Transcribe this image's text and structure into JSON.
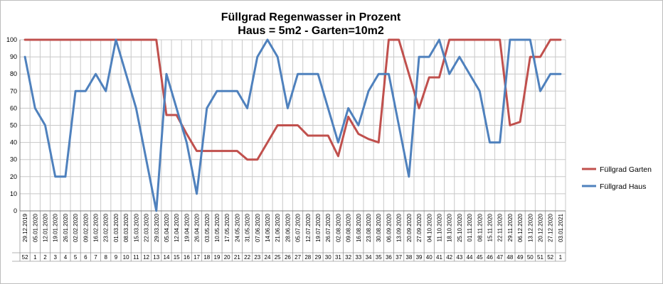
{
  "chart_data": {
    "type": "line",
    "title": [
      "Füllgrad Regenwasser in Prozent",
      "Haus = 5m2 - Garten=10m2"
    ],
    "ylim": [
      0,
      100
    ],
    "yticks": [
      "0",
      "10",
      "20",
      "30",
      "40",
      "50",
      "60",
      "70",
      "80",
      "90",
      "100"
    ],
    "grid": true,
    "legend": "right",
    "categories": [
      "29.12.2019",
      "05.01.2020",
      "12.01.2020",
      "19.01.2020",
      "26.01.2020",
      "02.02.2020",
      "09.02.2020",
      "16.02.2020",
      "23.02.2020",
      "01.03.2020",
      "08.03.2020",
      "15.03.2020",
      "22.03.2020",
      "29.03.2020",
      "05.04.2020",
      "12.04.2020",
      "19.04.2020",
      "26.04.2020",
      "03.05.2020",
      "10.05.2020",
      "17.05.2020",
      "24.05.2020",
      "31.05.2020",
      "07.06.2020",
      "14.06.2020",
      "21.06.2020",
      "28.06.2020",
      "05.07.2020",
      "12.07.2020",
      "19.07.2020",
      "26.07.2020",
      "02.08.2020",
      "09.08.2020",
      "16.08.2020",
      "23.08.2020",
      "30.08.2020",
      "06.09.2020",
      "13.09.2020",
      "20.09.2020",
      "27.09.2020",
      "04.10.2020",
      "11.10.2020",
      "18.10.2020",
      "25.10.2020",
      "01.11.2020",
      "08.11.2020",
      "15.11.2020",
      "22.11.2020",
      "29.11.2020",
      "06.12.2020",
      "13.12.2020",
      "20.12.2020",
      "27.12.2020",
      "03.01.2021"
    ],
    "weeks": [
      "52",
      "1",
      "2",
      "3",
      "4",
      "5",
      "6",
      "7",
      "8",
      "9",
      "10",
      "11",
      "12",
      "13",
      "14",
      "15",
      "16",
      "17",
      "18",
      "19",
      "20",
      "21",
      "22",
      "23",
      "24",
      "25",
      "26",
      "27",
      "28",
      "29",
      "30",
      "31",
      "32",
      "33",
      "34",
      "35",
      "36",
      "37",
      "38",
      "39",
      "40",
      "41",
      "42",
      "43",
      "44",
      "45",
      "46",
      "47",
      "48",
      "49",
      "50",
      "51",
      "52",
      "1"
    ],
    "series": [
      {
        "name": "Füllgrad Garten",
        "color": "#c0504d",
        "values": [
          100,
          100,
          100,
          100,
          100,
          100,
          100,
          100,
          100,
          100,
          100,
          100,
          100,
          100,
          56,
          56,
          45,
          35,
          35,
          35,
          35,
          35,
          30,
          30,
          40,
          50,
          50,
          50,
          44,
          44,
          44,
          32,
          55,
          45,
          42,
          40,
          100,
          100,
          80,
          60,
          78,
          78,
          100,
          100,
          100,
          100,
          100,
          100,
          50,
          52,
          90,
          90,
          100,
          100
        ]
      },
      {
        "name": "Füllgrad Haus",
        "color": "#4f81bd",
        "values": [
          90,
          60,
          50,
          20,
          20,
          70,
          70,
          80,
          70,
          100,
          80,
          60,
          30,
          0,
          80,
          60,
          40,
          10,
          60,
          70,
          70,
          70,
          60,
          90,
          100,
          90,
          60,
          80,
          80,
          80,
          60,
          40,
          60,
          50,
          70,
          80,
          80,
          50,
          20,
          90,
          90,
          100,
          80,
          90,
          80,
          70,
          40,
          40,
          100,
          100,
          100,
          70,
          80,
          80
        ]
      }
    ]
  }
}
